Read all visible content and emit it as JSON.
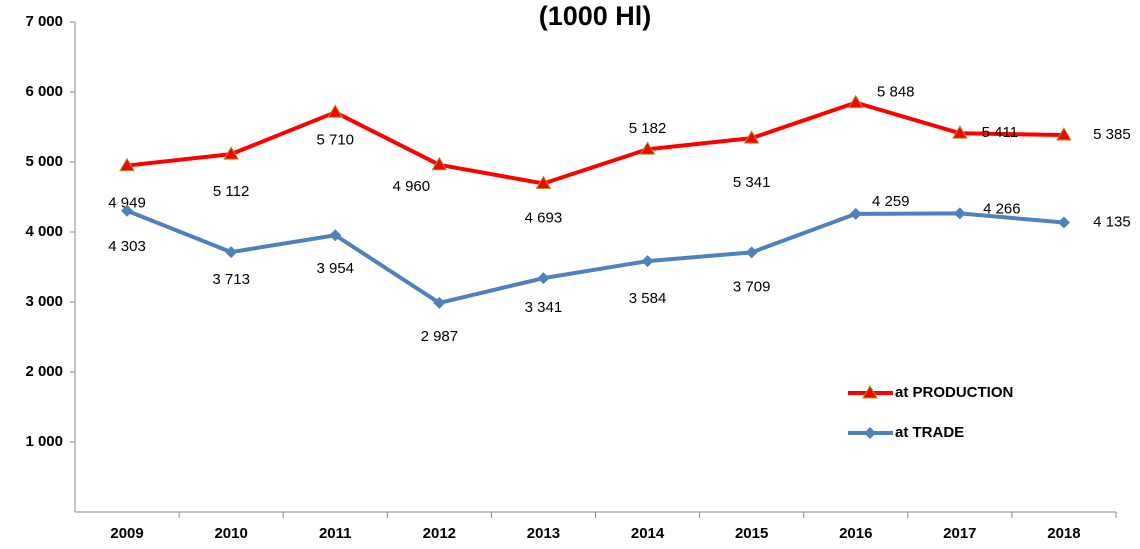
{
  "chart_data": {
    "type": "line",
    "title": "(1000 Hl)",
    "categories": [
      "2009",
      "2010",
      "2011",
      "2012",
      "2013",
      "2014",
      "2015",
      "2016",
      "2017",
      "2018"
    ],
    "series": [
      {
        "name": "at PRODUCTION",
        "color": "#ff0000",
        "marker": "triangle",
        "values": [
          4949,
          5112,
          5710,
          4960,
          4693,
          5182,
          5341,
          5848,
          5411,
          5385
        ],
        "value_labels": [
          "4 949",
          "5 112",
          "5 710",
          "4 960",
          "4 693",
          "5 182",
          "5 341",
          "5 848",
          "5 411",
          "5 385"
        ]
      },
      {
        "name": "at TRADE",
        "color": "#4f81bd",
        "marker": "diamond",
        "values": [
          4303,
          3713,
          3954,
          2987,
          3341,
          3584,
          3709,
          4259,
          4266,
          4135
        ],
        "value_labels": [
          "4 303",
          "3 713",
          "3 954",
          "2 987",
          "3 341",
          "3 584",
          "3 709",
          "4 259",
          "4 266",
          "4 135"
        ]
      }
    ],
    "ylim": [
      0,
      7000
    ],
    "yticks": [
      {
        "value": 1000,
        "label": "1 000"
      },
      {
        "value": 2000,
        "label": "2 000"
      },
      {
        "value": 3000,
        "label": "3 000"
      },
      {
        "value": 4000,
        "label": "4 000"
      },
      {
        "value": 5000,
        "label": "5 000"
      },
      {
        "value": 6000,
        "label": "6 000"
      },
      {
        "value": 7000,
        "label": "7 000"
      }
    ],
    "grid": false,
    "legend": "right"
  }
}
